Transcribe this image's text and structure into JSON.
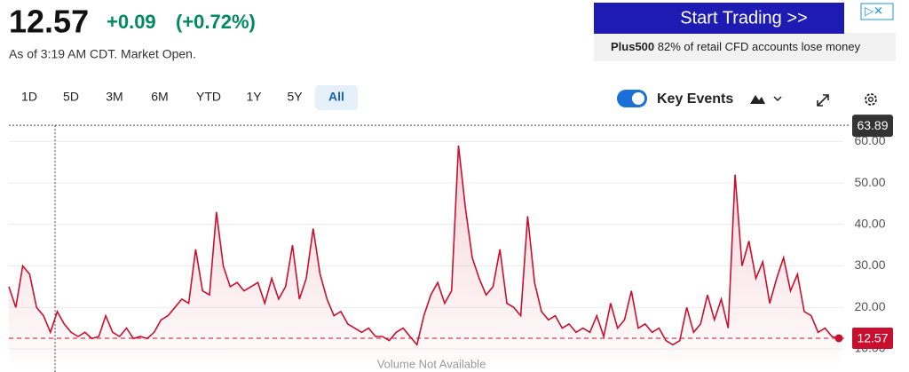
{
  "quote": {
    "price": "12.57",
    "change": "+0.09",
    "change_pct": "(+0.72%)",
    "as_of": "As of 3:19 AM CDT. Market Open."
  },
  "ad": {
    "cta": "Start Trading >>",
    "brand": "Plus500",
    "disclaimer": "82% of retail CFD accounts lose money"
  },
  "ranges": [
    "1D",
    "5D",
    "3M",
    "6M",
    "YTD",
    "1Y",
    "5Y",
    "All"
  ],
  "active_range": 7,
  "key_events": {
    "label": "Key Events",
    "enabled": true
  },
  "chart_data": {
    "type": "line",
    "color": "#c8102e",
    "values": [
      25,
      20,
      30,
      28,
      20,
      18,
      14,
      19,
      16,
      14,
      13,
      14,
      12.5,
      13,
      18,
      14,
      13,
      15,
      12.5,
      13,
      12.5,
      14,
      17,
      18,
      20,
      22,
      21,
      34,
      24,
      23,
      43,
      30,
      25,
      26,
      24,
      25,
      26,
      21,
      27,
      22,
      25,
      35,
      22,
      27,
      39,
      28,
      22,
      18,
      19,
      16,
      15,
      14,
      15,
      13,
      13,
      12,
      14,
      15,
      13,
      11,
      18,
      23,
      26,
      21,
      24,
      59,
      44,
      32,
      27,
      23,
      25,
      34,
      21,
      20,
      18,
      42,
      26,
      19,
      17,
      18,
      15,
      16,
      14,
      15,
      14,
      18,
      13,
      21,
      15,
      17,
      24,
      15,
      16,
      14,
      15,
      12,
      11,
      12,
      20,
      14,
      16,
      23,
      17,
      22,
      15,
      52,
      30,
      36,
      27,
      31,
      21,
      27,
      32,
      24,
      28,
      19,
      18,
      14,
      15,
      13,
      12.57
    ],
    "ylim": [
      7,
      65
    ],
    "yticks": [
      {
        "value": 10,
        "label": "10.00"
      },
      {
        "value": 20,
        "label": "20.00"
      },
      {
        "value": 30,
        "label": "30.00"
      },
      {
        "value": 40,
        "label": "40.00"
      },
      {
        "value": 50,
        "label": "50.00"
      },
      {
        "value": 60,
        "label": "60.00"
      }
    ],
    "grid": true,
    "crosshair": {
      "value": 63.89,
      "label": "63.89"
    },
    "last": {
      "value": 12.57,
      "label": "12.57"
    },
    "note": "Volume Not Available"
  }
}
